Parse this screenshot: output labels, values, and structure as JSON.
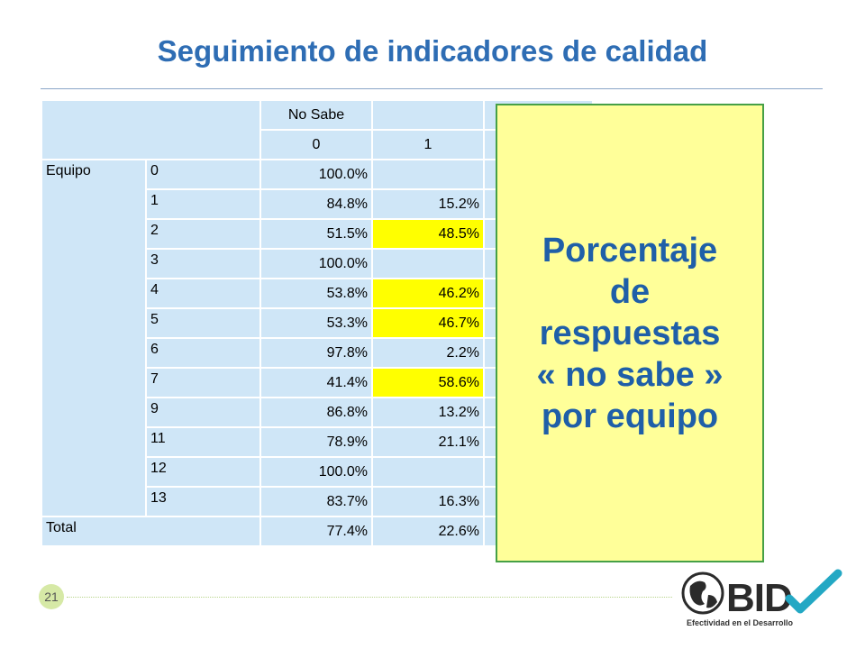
{
  "title": "Seguimiento de indicadores de calidad",
  "table": {
    "header_group": "No Sabe",
    "header_cols": [
      "0",
      "1"
    ],
    "rows": [
      {
        "group": "Equipo",
        "id": "0",
        "v0": "100.0%",
        "v1": ""
      },
      {
        "group": "",
        "id": "1",
        "v0": "84.8%",
        "v1": "15.2%"
      },
      {
        "group": "",
        "id": "2",
        "v0": "51.5%",
        "v1": "48.5%"
      },
      {
        "group": "",
        "id": "3",
        "v0": "100.0%",
        "v1": ""
      },
      {
        "group": "",
        "id": "4",
        "v0": "53.8%",
        "v1": "46.2%"
      },
      {
        "group": "",
        "id": "5",
        "v0": "53.3%",
        "v1": "46.7%"
      },
      {
        "group": "",
        "id": "6",
        "v0": "97.8%",
        "v1": "2.2%"
      },
      {
        "group": "",
        "id": "7",
        "v0": "41.4%",
        "v1": "58.6%"
      },
      {
        "group": "",
        "id": "9",
        "v0": "86.8%",
        "v1": "13.2%"
      },
      {
        "group": "",
        "id": "11",
        "v0": "78.9%",
        "v1": "21.1%"
      },
      {
        "group": "",
        "id": "12",
        "v0": "100.0%",
        "v1": ""
      },
      {
        "group": "",
        "id": "13",
        "v0": "83.7%",
        "v1": "16.3%"
      }
    ],
    "total": {
      "label": "Total",
      "v0": "77.4%",
      "v1": "22.6%"
    },
    "highlighted_rows": [
      "2",
      "4",
      "5",
      "7"
    ],
    "highlight_color": "#ffff00",
    "cell_color": "#cfe6f7"
  },
  "callout": {
    "lines": [
      "Porcentaje",
      "de",
      "respuestas",
      "« no sabe »",
      "por equipo"
    ],
    "background": "#ffff99",
    "text_color": "#1f5fa8"
  },
  "footer": {
    "page_number": "21",
    "logo_text": "BID",
    "logo_subtitle": "Efectividad en el Desarrollo"
  }
}
